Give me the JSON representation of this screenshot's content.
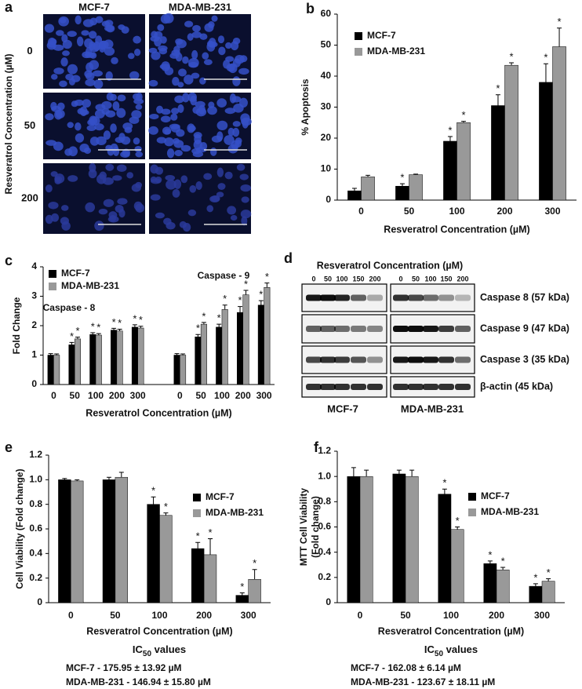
{
  "panels": {
    "a": {
      "label": "a",
      "columns": [
        "MCF-7",
        "MDA-MB-231"
      ],
      "rows": [
        "0",
        "50",
        "200"
      ],
      "ylabel": "Resveratrol Concentration (µM)"
    },
    "d": {
      "label": "d",
      "header": "Resveratrol Concentration (µM)",
      "doses": [
        "0",
        "50",
        "100",
        "150",
        "200"
      ],
      "blots": [
        "Caspase 8 (57 kDa)",
        "Caspase 9 (47 kDa)",
        "Caspase 3 (35 kDa)",
        "β-actin (45 kDa)"
      ],
      "cells": [
        "MCF-7",
        "MDA-MB-231"
      ]
    }
  },
  "chart_data": [
    {
      "type": "bar",
      "panel": "b",
      "ylabel": [
        "% Apoptosis"
      ],
      "xlabel": "Resveratrol Concentration (µM)",
      "categories": [
        "0",
        "50",
        "100",
        "200",
        "300"
      ],
      "sig_label": "*",
      "legend": "upper left",
      "series": [
        {
          "name": "MCF-7",
          "color": "#000000",
          "values": [
            3,
            4.5,
            19,
            30.5,
            38
          ],
          "errors": [
            0.8,
            0.8,
            1.5,
            3.5,
            6
          ],
          "significant": [
            false,
            true,
            true,
            true,
            true
          ]
        },
        {
          "name": "MDA-MB-231",
          "color": "#999999",
          "values": [
            7.5,
            8.2,
            25,
            43.5,
            49.5
          ],
          "errors": [
            0.5,
            0.2,
            0.4,
            0.8,
            6
          ],
          "significant": [
            false,
            false,
            true,
            true,
            true
          ]
        }
      ],
      "ylim": [
        0,
        60
      ],
      "yticks": [
        0,
        10,
        20,
        30,
        40,
        50,
        60
      ]
    },
    {
      "type": "bar",
      "panel": "c",
      "ylabel": [
        "Fold Change"
      ],
      "xlabel": "Resveratrol Concentration (µM)",
      "categories": [
        "0",
        "50",
        "100",
        "200",
        "300",
        null,
        "0",
        "50",
        "100",
        "200",
        "300"
      ],
      "sig_label": "*",
      "legend": "upper left",
      "annotations": [
        "Caspase - 8",
        "Caspase - 9"
      ],
      "series": [
        {
          "name": "MCF-7",
          "color": "#000000",
          "values": [
            1.0,
            1.35,
            1.7,
            1.85,
            1.95,
            null,
            1.0,
            1.62,
            1.95,
            2.45,
            2.7
          ],
          "errors": [
            0.05,
            0.08,
            0.06,
            0.06,
            0.08,
            null,
            0.05,
            0.08,
            0.1,
            0.2,
            0.15
          ],
          "significant": [
            false,
            true,
            true,
            true,
            true,
            false,
            false,
            true,
            true,
            true,
            true
          ]
        },
        {
          "name": "MDA-MB-231",
          "color": "#999999",
          "values": [
            1.0,
            1.55,
            1.68,
            1.82,
            1.92,
            null,
            1.0,
            2.05,
            2.55,
            3.05,
            3.3
          ],
          "errors": [
            0.04,
            0.06,
            0.05,
            0.06,
            0.06,
            null,
            0.04,
            0.06,
            0.15,
            0.15,
            0.15
          ],
          "significant": [
            false,
            true,
            true,
            true,
            true,
            false,
            false,
            true,
            true,
            true,
            true
          ]
        }
      ],
      "ylim": [
        0,
        4
      ],
      "yticks": [
        0,
        1,
        2,
        3,
        4
      ]
    },
    {
      "type": "bar",
      "panel": "e",
      "ylabel": [
        "Cell Viability (Fold change)"
      ],
      "xlabel": "Resveratrol Concentration (µM)",
      "categories": [
        "0",
        "50",
        "100",
        "200",
        "300"
      ],
      "sig_label": "*",
      "legend": "center right",
      "series": [
        {
          "name": "MCF-7",
          "color": "#000000",
          "values": [
            1.0,
            1.0,
            0.8,
            0.44,
            0.06
          ],
          "errors": [
            0.01,
            0.02,
            0.06,
            0.05,
            0.02
          ],
          "significant": [
            false,
            false,
            true,
            true,
            true
          ]
        },
        {
          "name": "MDA-MB-231",
          "color": "#999999",
          "values": [
            0.99,
            1.02,
            0.71,
            0.39,
            0.19
          ],
          "errors": [
            0.01,
            0.04,
            0.02,
            0.13,
            0.08
          ],
          "significant": [
            false,
            false,
            true,
            true,
            true
          ]
        }
      ],
      "ylim": [
        0,
        1.2
      ],
      "yticks": [
        0,
        0.2,
        0.4,
        0.6,
        0.8,
        {
          "value": 1,
          "label": "1.0"
        },
        1.2
      ],
      "ic": {
        "text": "IC",
        "sub": "50",
        "rest": " values"
      },
      "ic_values": [
        "MCF-7 - 175.95 ± 13.92 µM",
        "MDA-MB-231 - 146.94 ± 15.80 µM"
      ]
    },
    {
      "type": "bar",
      "panel": "f",
      "ylabel": [
        "MTT Cell Viability",
        "(Fold change)"
      ],
      "xlabel": "Resveratrol Concentration (µM)",
      "categories": [
        "0",
        "50",
        "100",
        "200",
        "300"
      ],
      "sig_label": "*",
      "legend": "center right",
      "series": [
        {
          "name": "MCF-7",
          "color": "#000000",
          "values": [
            1.0,
            1.02,
            0.86,
            0.31,
            0.13
          ],
          "errors": [
            0.07,
            0.03,
            0.04,
            0.02,
            0.02
          ],
          "significant": [
            false,
            false,
            true,
            true,
            true
          ]
        },
        {
          "name": "MDA-MB-231",
          "color": "#999999",
          "values": [
            1.0,
            1.0,
            0.58,
            0.26,
            0.17
          ],
          "errors": [
            0.05,
            0.05,
            0.02,
            0.02,
            0.02
          ],
          "significant": [
            false,
            false,
            true,
            true,
            true
          ]
        }
      ],
      "ylim": [
        0,
        1.2
      ],
      "yticks": [
        0,
        0.2,
        0.4,
        0.6,
        0.8,
        {
          "value": 1,
          "label": "1.0"
        },
        1.2
      ],
      "ic": {
        "text": "IC",
        "sub": "50",
        "rest": " values"
      },
      "ic_values": [
        "MCF-7 - 162.08 ± 6.14 µM",
        "MDA-MB-231 - 123.67 ± 18.11 µM"
      ]
    }
  ]
}
